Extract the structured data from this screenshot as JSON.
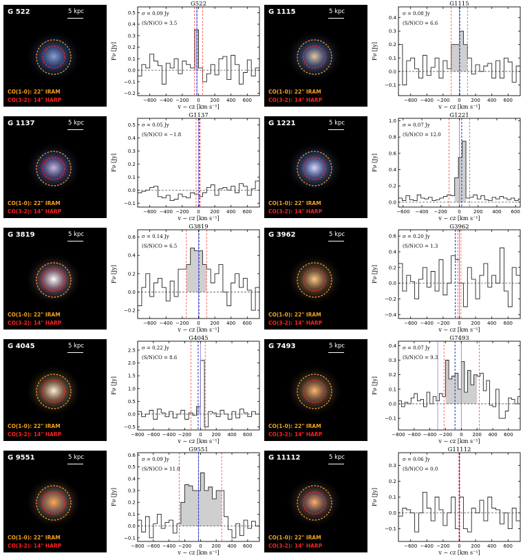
{
  "image_labels": {
    "co10": "CO(1-0): 22\" IRAM",
    "co32": "CO(3-2): 14\" HARP",
    "scale": "5 kpc"
  },
  "axis": {
    "xlabel": "v − cz [km s⁻¹]",
    "ylabel": "Fν [Jy]"
  },
  "chart_data": [
    {
      "type": "step",
      "title": "G522",
      "galaxy": "G 522",
      "sigma": "σ = 0.09 Jy",
      "sn": "(S/N)CO = 3.5",
      "xlim": [
        -750,
        750
      ],
      "ylim": [
        -0.22,
        0.55
      ],
      "xticks": [
        -600,
        -400,
        -200,
        0,
        200,
        400,
        600
      ],
      "yticks": [
        -0.2,
        -0.1,
        0.0,
        0.1,
        0.2,
        0.3,
        0.4,
        0.5
      ],
      "ytick_labels": [
        "−0.2",
        "−0.1",
        "0.0",
        "0.1",
        "0.2",
        "0.3",
        "0.4",
        "0.5"
      ],
      "bin_start": -750,
      "bin_width": 50,
      "flux": [
        -0.05,
        0.05,
        0.02,
        0.14,
        0.08,
        0.04,
        -0.12,
        0.06,
        0.02,
        0.1,
        -0.03,
        0.08,
        0.05,
        0.02,
        0.35,
        0.02,
        -0.1,
        -0.03,
        0.05,
        -0.04,
        0.1,
        0.12,
        -0.08,
        0.13,
        0.05,
        -0.12,
        -0.02,
        0.09,
        -0.05,
        0.02
      ],
      "shade": [
        -50,
        0
      ],
      "red_lines": [
        -50,
        50
      ],
      "blue_line": -20,
      "purple_line": -20
    },
    {
      "type": "step",
      "title": "G1115",
      "galaxy": "G 1115",
      "sigma": "σ = 0.08 Jy",
      "sn": "(S/N)CO = 6.6",
      "xlim": [
        -750,
        750
      ],
      "ylim": [
        -0.18,
        0.48
      ],
      "xticks": [
        -600,
        -400,
        -200,
        0,
        200,
        400,
        600
      ],
      "yticks": [
        -0.1,
        0.0,
        0.1,
        0.2,
        0.3,
        0.4
      ],
      "ytick_labels": [
        "−0.1",
        "0.0",
        "0.1",
        "0.2",
        "0.3",
        "0.4"
      ],
      "bin_start": -750,
      "bin_width": 50,
      "flux": [
        0.2,
        -0.1,
        0.08,
        0.1,
        0.02,
        -0.05,
        0.12,
        -0.03,
        0.03,
        0.1,
        -0.05,
        0.08,
        0.02,
        0.2,
        0.2,
        0.3,
        0.2,
        0.1,
        -0.02,
        0.05,
        0.0,
        0.04,
        0.06,
        -0.05,
        0.08,
        -0.05,
        0.1,
        0.07,
        -0.08,
        0.04
      ],
      "shade": [
        -100,
        100
      ],
      "red_lines": [
        -100,
        100
      ],
      "blue_line": 5,
      "purple_line": 0
    },
    {
      "type": "step",
      "title": "G1137",
      "galaxy": "G 1137",
      "sigma": "σ = 0.05 Jy",
      "sn": "(S/N)CO = −1.8",
      "xlim": [
        -750,
        750
      ],
      "ylim": [
        -0.13,
        0.55
      ],
      "xticks": [
        -600,
        -400,
        -200,
        0,
        200,
        400,
        600
      ],
      "yticks": [
        -0.1,
        0.0,
        0.1,
        0.2,
        0.3,
        0.4,
        0.5
      ],
      "ytick_labels": [
        "−0.1",
        "0.0",
        "0.1",
        "0.2",
        "0.3",
        "0.4",
        "0.5"
      ],
      "bin_start": -750,
      "bin_width": 50,
      "flux": [
        -0.02,
        -0.01,
        0.0,
        0.02,
        0.03,
        -0.05,
        -0.06,
        -0.04,
        -0.08,
        -0.07,
        -0.03,
        -0.05,
        -0.06,
        -0.02,
        -0.03,
        -0.05,
        -0.02,
        0.02,
        0.04,
        -0.04,
        0.01,
        0.02,
        0.0,
        0.03,
        -0.02,
        0.05,
        0.03,
        -0.04,
        0.01,
        0.07
      ],
      "shade": [
        0,
        0
      ],
      "red_lines": [
        -30,
        20
      ],
      "blue_line": 10,
      "purple_line": 0
    },
    {
      "type": "step",
      "title": "G1221",
      "galaxy": "G 1221",
      "sigma": "σ = 0.07 Jy",
      "sn": "(S/N)CO = 12.0",
      "xlim": [
        -650,
        650
      ],
      "ylim": [
        -0.06,
        1.03
      ],
      "xticks": [
        -600,
        -400,
        -200,
        0,
        200,
        400,
        600
      ],
      "yticks": [
        0.0,
        0.2,
        0.4,
        0.6,
        0.8,
        1.0
      ],
      "ytick_labels": [
        "0.0",
        "0.2",
        "0.4",
        "0.6",
        "0.8",
        "1.0"
      ],
      "bin_start": -650,
      "bin_width": 40,
      "flux": [
        0.05,
        0.02,
        0.08,
        0.03,
        0.02,
        0.09,
        0.05,
        0.04,
        0.06,
        0.02,
        0.03,
        0.05,
        0.07,
        0.09,
        0.08,
        0.3,
        0.55,
        0.75,
        0.05,
        0.06,
        0.09,
        0.04,
        0.08,
        0.03,
        0.02,
        0.06,
        0.04,
        0.07,
        0.05,
        0.03,
        0.05,
        0.02,
        0.04
      ],
      "shade": [
        -50,
        70
      ],
      "red_lines": [
        -110,
        110
      ],
      "blue_line": 25,
      "purple_line": 0
    },
    {
      "type": "step",
      "title": "G3819",
      "galaxy": "G 3819",
      "sigma": "σ = 0.14 Jy",
      "sn": "(S/N)CO = 6.5",
      "xlim": [
        -750,
        750
      ],
      "ylim": [
        -0.29,
        0.68
      ],
      "xticks": [
        -600,
        -400,
        -200,
        0,
        200,
        400,
        600
      ],
      "yticks": [
        -0.2,
        0.0,
        0.2,
        0.4,
        0.6
      ],
      "ytick_labels": [
        "−0.2",
        "0.0",
        "0.2",
        "0.4",
        "0.6"
      ],
      "bin_start": -750,
      "bin_width": 50,
      "flux": [
        -0.15,
        0.05,
        0.2,
        -0.05,
        0.1,
        0.15,
        0.05,
        -0.1,
        0.12,
        -0.05,
        0.25,
        0.25,
        0.3,
        0.48,
        0.45,
        0.45,
        0.3,
        0.25,
        0.1,
        0.2,
        0.3,
        0.0,
        -0.15,
        0.1,
        0.2,
        0.05,
        0.15,
        0.02,
        -0.2,
        0.05
      ],
      "shade": [
        -150,
        100
      ],
      "red_lines": [
        -150,
        100
      ],
      "blue_line": 5,
      "purple_line": 0
    },
    {
      "type": "step",
      "title": "G3962",
      "galaxy": "G 3962",
      "sigma": "σ = 0.20 Jy",
      "sn": "(S/N)CO = 1.3",
      "xlim": [
        -750,
        750
      ],
      "ylim": [
        -0.45,
        0.68
      ],
      "xticks": [
        -600,
        -400,
        -200,
        0,
        200,
        400,
        600
      ],
      "yticks": [
        -0.4,
        -0.2,
        0.0,
        0.2,
        0.4,
        0.6
      ],
      "ytick_labels": [
        "−0.4",
        "−0.2",
        "0.0",
        "0.2",
        "0.4",
        "0.6"
      ],
      "bin_start": -750,
      "bin_width": 50,
      "flux": [
        0.25,
        -0.1,
        0.1,
        0.02,
        -0.2,
        0.05,
        0.2,
        -0.05,
        0.15,
        -0.1,
        0.3,
        -0.15,
        0.0,
        0.35,
        0.3,
        0.0,
        -0.3,
        0.2,
        0.05,
        -0.2,
        0.1,
        0.25,
        -0.05,
        0.1,
        0.0,
        0.45,
        -0.1,
        -0.3,
        0.2,
        0.1
      ],
      "shade": [
        0,
        0
      ],
      "red_lines": [
        -20,
        20
      ],
      "blue_line": -50,
      "purple_line": 0
    },
    {
      "type": "step",
      "title": "G4045",
      "galaxy": "G 4045",
      "sigma": "σ = 0.22 Jy",
      "sn": "(S/N)CO = 8.6",
      "xlim": [
        -800,
        750
      ],
      "ylim": [
        -0.62,
        2.85
      ],
      "xticks": [
        -800,
        -600,
        -400,
        -200,
        0,
        200,
        400,
        600
      ],
      "yticks": [
        -0.5,
        0.0,
        0.5,
        1.0,
        1.5,
        2.0,
        2.5
      ],
      "ytick_labels": [
        "−0.5",
        "0.0",
        "0.5",
        "1.0",
        "1.5",
        "2.0",
        "2.5"
      ],
      "bin_start": -800,
      "bin_width": 50,
      "flux": [
        0.1,
        -0.1,
        0.0,
        0.15,
        -0.2,
        0.2,
        0.05,
        -0.1,
        0.1,
        -0.15,
        0.0,
        0.15,
        -0.2,
        0.05,
        -0.05,
        0.3,
        2.1,
        -0.5,
        0.1,
        0.05,
        -0.1,
        0.15,
        0.0,
        -0.2,
        0.1,
        -0.15,
        0.2,
        0.05,
        -0.1,
        0.1,
        0.0
      ],
      "shade": [
        -50,
        0
      ],
      "red_lines": [
        -120,
        60
      ],
      "blue_line": -30,
      "purple_line": 0
    },
    {
      "type": "step",
      "title": "G7493",
      "galaxy": "G 7493",
      "sigma": "σ = 0.07 Jy",
      "sn": "(S/N)CO = 9.3",
      "xlim": [
        -800,
        750
      ],
      "ylim": [
        -0.18,
        0.43
      ],
      "xticks": [
        -800,
        -600,
        -400,
        -200,
        0,
        200,
        400,
        600
      ],
      "yticks": [
        -0.1,
        0.0,
        0.1,
        0.2,
        0.3,
        0.4
      ],
      "ytick_labels": [
        "−0.1",
        "0.0",
        "0.1",
        "0.2",
        "0.3",
        "0.4"
      ],
      "bin_start": -800,
      "bin_width": 40,
      "flux": [
        0.02,
        -0.02,
        0.01,
        0.0,
        0.04,
        0.07,
        0.02,
        0.03,
        -0.02,
        0.08,
        0.0,
        0.05,
        0.02,
        0.07,
        0.05,
        0.3,
        0.17,
        0.19,
        0.21,
        0.1,
        0.29,
        0.08,
        0.23,
        0.13,
        0.2,
        0.19,
        0.21,
        0.09,
        0.16,
        -0.01,
        -0.02,
        0.1,
        -0.1,
        -0.1,
        -0.05,
        0.04,
        0.03,
        0.0,
        0.05
      ],
      "shade": [
        -200,
        200
      ],
      "red_lines": [
        -220,
        230
      ],
      "blue_line": -80,
      "purple_line": 0,
      "extra_purple": -300
    },
    {
      "type": "step",
      "title": "G9551",
      "galaxy": "G 9551",
      "sigma": "σ = 0.09 Jy",
      "sn": "(S/N)CO = 11.0",
      "xlim": [
        -800,
        750
      ],
      "ylim": [
        -0.13,
        0.62
      ],
      "xticks": [
        -800,
        -600,
        -400,
        -200,
        0,
        200,
        400,
        600
      ],
      "yticks": [
        -0.1,
        0.0,
        0.1,
        0.2,
        0.3,
        0.4,
        0.5,
        0.6
      ],
      "ytick_labels": [
        "−0.1",
        "0.0",
        "0.1",
        "0.2",
        "0.3",
        "0.4",
        "0.5",
        "0.6"
      ],
      "bin_start": -800,
      "bin_width": 50,
      "flux": [
        0.05,
        -0.05,
        0.08,
        -0.1,
        0.02,
        0.1,
        -0.02,
        0.03,
        0.05,
        -0.06,
        0.02,
        0.2,
        0.35,
        0.34,
        0.3,
        0.3,
        0.45,
        0.3,
        0.33,
        0.23,
        0.3,
        0.3,
        0.08,
        -0.03,
        -0.1,
        0.02,
        -0.08,
        0.05,
        -0.02,
        0.04,
        0.0
      ],
      "shade": [
        -250,
        270
      ],
      "red_lines": [
        -270,
        270
      ],
      "blue_line": -25,
      "purple_line": -25
    },
    {
      "type": "step",
      "title": "G11112",
      "galaxy": "G 11112",
      "sigma": "σ = 0.06 Jy",
      "sn": "(S/N)CO = 0.0",
      "xlim": [
        -750,
        750
      ],
      "ylim": [
        -0.18,
        0.38
      ],
      "xticks": [
        -600,
        -400,
        -200,
        0,
        200,
        400,
        600
      ],
      "yticks": [
        -0.1,
        0.0,
        0.1,
        0.2,
        0.3
      ],
      "ytick_labels": [
        "−0.1",
        "0.0",
        "0.1",
        "0.2",
        "0.3"
      ],
      "bin_start": -750,
      "bin_width": 50,
      "flux": [
        -0.02,
        0.03,
        0.02,
        0.0,
        -0.12,
        0.0,
        0.13,
        0.03,
        -0.05,
        0.1,
        0.02,
        -0.08,
        0.0,
        0.1,
        -0.1,
        0.1,
        -0.1,
        -0.12,
        0.03,
        0.0,
        0.08,
        -0.05,
        0.1,
        0.03,
        0.02,
        -0.07,
        0.0,
        -0.1,
        0.03,
        -0.05
      ],
      "shade": [
        0,
        0
      ],
      "red_lines": [
        -5,
        5
      ],
      "blue_line": 0,
      "purple_line": 0
    }
  ]
}
